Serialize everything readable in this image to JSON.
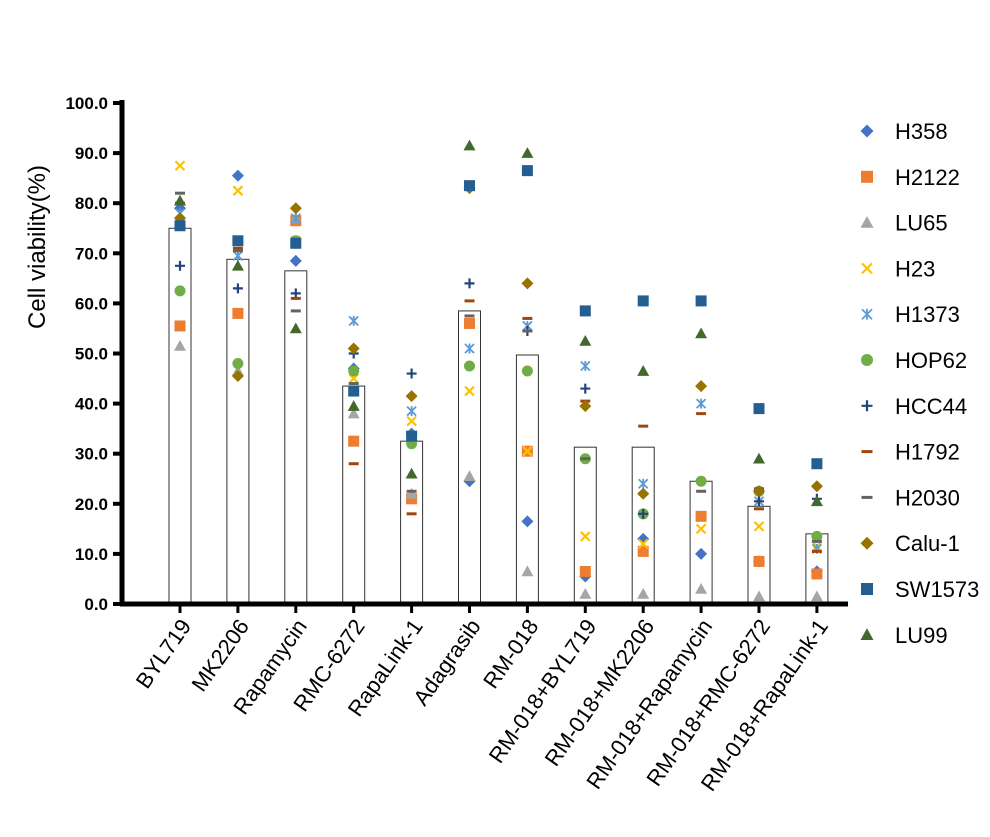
{
  "chart_data": {
    "type": "scatter",
    "subtype": "bar-with-individual-points",
    "ylabel": "Cell viability(%)",
    "xlabel": "",
    "ylim": [
      0,
      100
    ],
    "yticks": [
      "0.0",
      "10.0",
      "20.0",
      "30.0",
      "40.0",
      "50.0",
      "60.0",
      "70.0",
      "80.0",
      "90.0",
      "100.0"
    ],
    "categories": [
      "BYL719",
      "MK2206",
      "Rapamycin",
      "RMC-6272",
      "RapaLink-1",
      "Adagrasib",
      "RM-018",
      "RM-018+BYL719",
      "RM-018+MK2206",
      "RM-018+Rapamycin",
      "RM-018+RMC-6272",
      "RM-018+RapaLink-1"
    ],
    "bar_means": [
      75,
      68.8,
      66.5,
      43.5,
      32.5,
      58.5,
      49.7,
      31.3,
      31.3,
      24.5,
      19.5,
      14.0
    ],
    "legend_position": "right",
    "series": [
      {
        "name": "H358",
        "marker": "diamond",
        "color": "#4472C4",
        "values": [
          79,
          85.5,
          68.5,
          47,
          34,
          24.5,
          16.5,
          5.5,
          13,
          10,
          8.5,
          6.5
        ]
      },
      {
        "name": "H2122",
        "marker": "square",
        "color": "#ED7D31",
        "values": [
          55.5,
          58,
          76.5,
          32.5,
          21,
          56,
          30.5,
          6.5,
          10.5,
          17.5,
          8.5,
          6
        ]
      },
      {
        "name": "LU65",
        "marker": "triangle",
        "color": "#A5A5A5",
        "values": [
          51.5,
          46.5,
          77,
          38,
          22,
          25.5,
          6.5,
          2,
          2,
          3,
          1.5,
          1.5
        ]
      },
      {
        "name": "H23",
        "marker": "x",
        "color": "#FFC000",
        "values": [
          87.5,
          82.5,
          72.5,
          45,
          36.5,
          42.5,
          30.5,
          13.5,
          12,
          15,
          15.5,
          11.5
        ]
      },
      {
        "name": "H1373",
        "marker": "star",
        "color": "#5B9BD5",
        "values": [
          78,
          69.5,
          77,
          56.5,
          38.5,
          51,
          55.5,
          47.5,
          24,
          40,
          20.5,
          11
        ]
      },
      {
        "name": "HOP62",
        "marker": "circle",
        "color": "#70AD47",
        "values": [
          62.5,
          48,
          72.5,
          46.5,
          32,
          47.5,
          46.5,
          29,
          18,
          24.5,
          22.5,
          13.5
        ]
      },
      {
        "name": "HCC44",
        "marker": "plus",
        "color": "#264478",
        "values": [
          67.5,
          63,
          62,
          50,
          46,
          64,
          54.5,
          43,
          18,
          43.5,
          20.5,
          21
        ]
      },
      {
        "name": "H1792",
        "marker": "dash",
        "color": "#9E480E",
        "values": [
          80,
          71,
          61,
          28,
          18,
          60.5,
          57,
          40.5,
          35.5,
          38,
          19,
          10.5
        ]
      },
      {
        "name": "H2030",
        "marker": "dash",
        "color": "#636363",
        "values": [
          82,
          70.5,
          58.5,
          44,
          22.5,
          57.5,
          54.5,
          29,
          22,
          22.5,
          23,
          12.5
        ]
      },
      {
        "name": "Calu-1",
        "marker": "diamond",
        "color": "#997300",
        "values": [
          77,
          45.5,
          79,
          51,
          41.5,
          83,
          64,
          39.5,
          22,
          43.5,
          22.5,
          23.5
        ]
      },
      {
        "name": "SW1573",
        "marker": "square",
        "color": "#255E91",
        "values": [
          75.5,
          72.5,
          72,
          42.5,
          33.5,
          83.5,
          86.5,
          58.5,
          60.5,
          60.5,
          39,
          28
        ]
      },
      {
        "name": "LU99",
        "marker": "triangle",
        "color": "#43682B",
        "values": [
          80.5,
          67.5,
          55,
          39.5,
          26,
          91.5,
          90,
          52.5,
          46.5,
          54,
          29,
          20.5
        ]
      }
    ]
  }
}
